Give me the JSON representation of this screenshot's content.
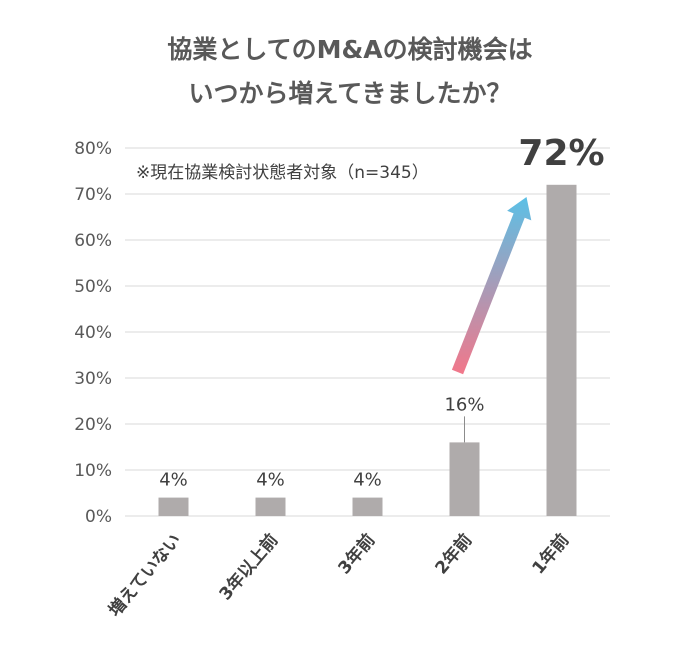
{
  "title": {
    "line1": "協業としてのM&Aの検討機会は",
    "line2": "いつから増えてきましたか？"
  },
  "note": "※現在協業検討状態者対象（n=345）",
  "colors": {
    "bar": "#afabab",
    "grid": "#d9d9d9",
    "text": "#595959",
    "arrow_start": "#f2778a",
    "arrow_end": "#5bc0e6"
  },
  "chart_data": {
    "type": "bar",
    "categories": [
      "増えていない",
      "3年以上前",
      "3年前",
      "2年前",
      "1年前"
    ],
    "values": [
      4,
      4,
      4,
      16,
      72
    ],
    "data_labels": [
      "4%",
      "4%",
      "4%",
      "16%",
      "72%"
    ],
    "y_ticks": [
      "0%",
      "10%",
      "20%",
      "30%",
      "40%",
      "50%",
      "60%",
      "70%",
      "80%"
    ],
    "ylim": [
      0,
      80
    ],
    "grid": true,
    "legend": "none",
    "annotation": "arrow from 2年前 to 1年前 (pink to blue gradient)"
  }
}
